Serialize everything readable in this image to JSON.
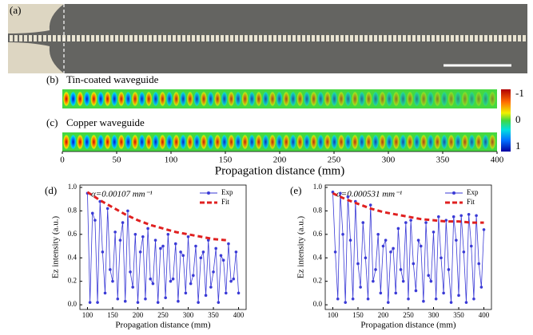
{
  "figure": {
    "panel_a": {
      "label": "(a)"
    },
    "field_maps": {
      "panels": [
        {
          "label": "(b)",
          "title": "Tin-coated waveguide"
        },
        {
          "label": "(c)",
          "title": "Copper waveguide"
        }
      ],
      "xlim": [
        0,
        400
      ],
      "xticks": [
        0,
        50,
        100,
        150,
        200,
        250,
        300,
        350,
        400
      ],
      "xlabel": "Propagation distance (mm)",
      "colorbar_ticks": [
        -1,
        0,
        1
      ]
    }
  },
  "chart_data": [
    {
      "type": "line",
      "label": "(d)",
      "annotation": "α=0.00107 mm⁻¹",
      "xlabel": "Propagation distance (mm)",
      "ylabel": "Ez intensity (a.u.)",
      "xlim": [
        85,
        415
      ],
      "ylim": [
        -0.04,
        1.02
      ],
      "xticks": [
        100,
        150,
        200,
        250,
        300,
        350,
        400
      ],
      "yticks": [
        {
          "value": 0,
          "label": "0.0"
        },
        0.2,
        0.4,
        0.6,
        0.8,
        {
          "value": 1,
          "label": "1.0"
        }
      ],
      "legend": "upper right",
      "series": [
        {
          "name": "Exp",
          "color": "#3a3ad6",
          "style": "solid-markers",
          "x": [
            100,
            105,
            110,
            115,
            120,
            125,
            130,
            135,
            140,
            145,
            150,
            155,
            160,
            165,
            170,
            175,
            180,
            185,
            190,
            195,
            200,
            205,
            210,
            215,
            220,
            225,
            230,
            235,
            240,
            245,
            250,
            255,
            260,
            265,
            270,
            275,
            280,
            285,
            290,
            295,
            300,
            305,
            310,
            315,
            320,
            325,
            330,
            335,
            340,
            345,
            350,
            355,
            360,
            365,
            370,
            375,
            380,
            385,
            390,
            395,
            400
          ],
          "values": [
            0.95,
            0.02,
            0.78,
            0.72,
            0.02,
            0.88,
            0.45,
            0.1,
            0.82,
            0.3,
            0.2,
            0.62,
            0.05,
            0.55,
            0.7,
            0.03,
            0.8,
            0.28,
            0.15,
            0.6,
            0.02,
            0.45,
            0.58,
            0.05,
            0.65,
            0.22,
            0.18,
            0.55,
            0.02,
            0.48,
            0.5,
            0.06,
            0.6,
            0.2,
            0.22,
            0.52,
            0.03,
            0.45,
            0.42,
            0.1,
            0.58,
            0.18,
            0.25,
            0.5,
            0.02,
            0.4,
            0.45,
            0.08,
            0.55,
            0.15,
            0.28,
            0.48,
            0.02,
            0.42,
            0.38,
            0.1,
            0.52,
            0.2,
            0.22,
            0.45,
            0.1
          ]
        },
        {
          "name": "Fit",
          "color": "#e02020",
          "style": "dashed",
          "x": [
            100,
            125,
            150,
            175,
            200,
            225,
            250,
            275,
            300,
            325,
            350,
            375
          ],
          "values": [
            0.96,
            0.89,
            0.83,
            0.77,
            0.72,
            0.68,
            0.65,
            0.62,
            0.6,
            0.58,
            0.56,
            0.55
          ]
        }
      ]
    },
    {
      "type": "line",
      "label": "(e)",
      "annotation": "α=0.000531 mm⁻¹",
      "xlabel": "Propagation distance (mm)",
      "ylabel": "Ez intensity (a.u.)",
      "xlim": [
        85,
        415
      ],
      "ylim": [
        -0.04,
        1.02
      ],
      "xticks": [
        100,
        150,
        200,
        250,
        300,
        350,
        400
      ],
      "yticks": [
        {
          "value": 0,
          "label": "0.0"
        },
        0.2,
        0.4,
        0.6,
        0.8,
        {
          "value": 1,
          "label": "1.0"
        }
      ],
      "legend": "upper right",
      "series": [
        {
          "name": "Exp",
          "color": "#3a3ad6",
          "style": "solid-markers",
          "x": [
            100,
            105,
            110,
            115,
            120,
            125,
            130,
            135,
            140,
            145,
            150,
            155,
            160,
            165,
            170,
            175,
            180,
            185,
            190,
            195,
            200,
            205,
            210,
            215,
            220,
            225,
            230,
            235,
            240,
            245,
            250,
            255,
            260,
            265,
            270,
            275,
            280,
            285,
            290,
            295,
            300,
            305,
            310,
            315,
            320,
            325,
            330,
            335,
            340,
            345,
            350,
            355,
            360,
            365,
            370,
            375,
            380,
            385,
            390,
            395,
            400
          ],
          "values": [
            0.96,
            0.45,
            0.05,
            0.95,
            0.6,
            0.02,
            0.92,
            0.55,
            0.05,
            0.88,
            0.35,
            0.15,
            0.7,
            0.4,
            0.05,
            0.85,
            0.2,
            0.3,
            0.6,
            0.1,
            0.5,
            0.55,
            0.02,
            0.45,
            0.48,
            0.1,
            0.65,
            0.3,
            0.2,
            0.7,
            0.05,
            0.72,
            0.35,
            0.12,
            0.55,
            0.5,
            0.03,
            0.7,
            0.25,
            0.2,
            0.62,
            0.05,
            0.75,
            0.4,
            0.1,
            0.72,
            0.3,
            0.02,
            0.75,
            0.55,
            0.08,
            0.76,
            0.45,
            0.02,
            0.77,
            0.5,
            0.05,
            0.76,
            0.35,
            0.15,
            0.64
          ]
        },
        {
          "name": "Fit",
          "color": "#e02020",
          "style": "dashed",
          "x": [
            100,
            125,
            150,
            175,
            200,
            225,
            250,
            275,
            300,
            325,
            350,
            375,
            400
          ],
          "values": [
            0.95,
            0.9,
            0.86,
            0.82,
            0.79,
            0.77,
            0.75,
            0.73,
            0.72,
            0.71,
            0.71,
            0.7,
            0.7
          ]
        }
      ]
    }
  ]
}
